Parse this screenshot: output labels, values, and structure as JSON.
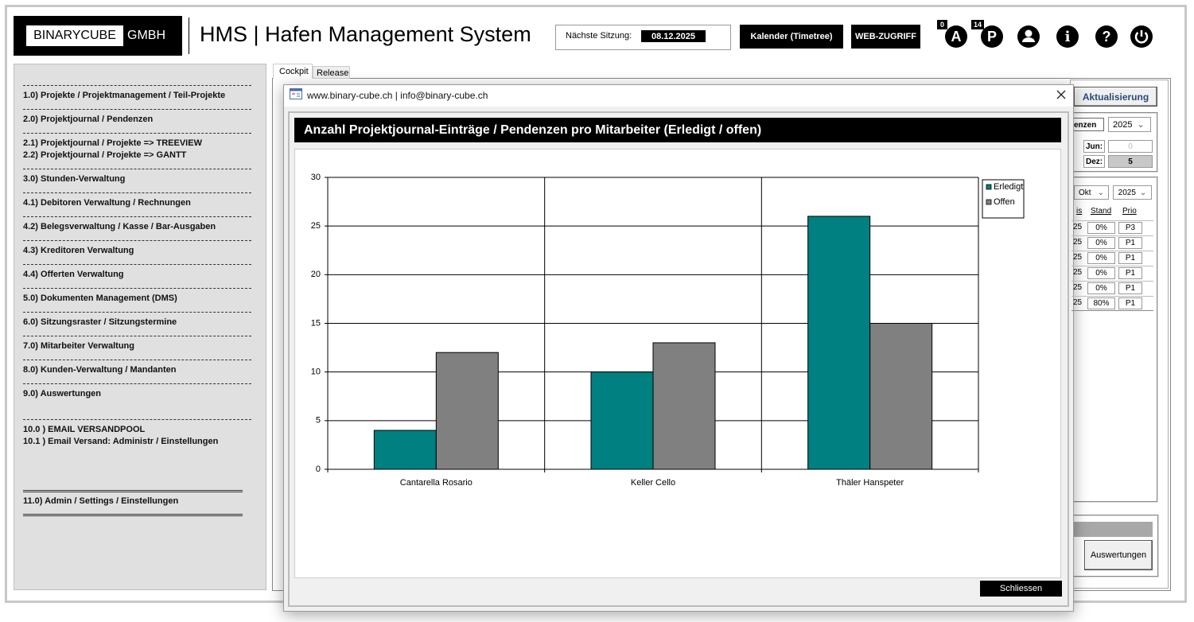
{
  "header": {
    "logo": "BINARYCUBE",
    "logo_suffix": "GMBH",
    "title": "HMS | Hafen Management System",
    "session_label": "Nächste Sitzung:",
    "session_date": "08.12.2025",
    "buttons": [
      "Kalender (Timetree)",
      "WEB-ZUGRIFF"
    ],
    "badges": [
      {
        "count": 0,
        "letter": "A"
      },
      {
        "count": 14,
        "letter": "P"
      }
    ],
    "icons": [
      "i",
      "?"
    ]
  },
  "menu": {
    "items": [
      "1.0) Projekte / Projektmanagement / Teil-Projekte",
      "2.0) Projektjournal / Pendenzen",
      "2.1) Projektjournal / Projekte => TREEVIEW",
      "2.2) Projektjournal / Projekte => GANTT",
      "3.0) Stunden-Verwaltung",
      "4.1) Debitoren Verwaltung / Rechnungen",
      "4.2) Belegsverwaltung / Kasse / Bar-Ausgaben",
      "4.3) Kreditoren Verwaltung",
      "4.4) Offerten Verwaltung",
      "5.0) Dokumenten Management (DMS)",
      "6.0) Sitzungsraster / Sitzungstermine",
      "7.0) Mitarbeiter Verwaltung",
      "8.0) Kunden-Verwaltung / Mandanten",
      "9.0) Auswertungen",
      "10.0 ) EMAIL VERSANDPOOL",
      "10.1 ) Email Versand: Administr / Einstellungen",
      "11.0) Admin / Settings / Einstellungen"
    ]
  },
  "tabs": [
    "Cockpit",
    "Release"
  ],
  "side_panel": {
    "refresh_button": "Aktualisierung",
    "filter_label": "enzen",
    "filter_year": "2025",
    "months": [
      {
        "label": "Jun:",
        "value": 0
      },
      {
        "label": "Dez:",
        "value": 5
      }
    ],
    "list_month": "Okt",
    "list_year": "2025",
    "columns": [
      "is",
      "Stand",
      "Prio"
    ],
    "rows": [
      [
        "25",
        "0%",
        "P3"
      ],
      [
        "25",
        "0%",
        "P1"
      ],
      [
        "25",
        "0%",
        "P1"
      ],
      [
        "25",
        "0%",
        "P1"
      ],
      [
        "25",
        "0%",
        "P1"
      ],
      [
        "25",
        "80%",
        "P1"
      ]
    ],
    "footer_button": "Auswertungen"
  },
  "dialog": {
    "title": "www.binary-cube.ch | info@binary-cube.ch",
    "close_button": "Schliessen"
  },
  "chart_data": {
    "type": "bar",
    "title": "Anzahl Projektjournal-Einträge / Pendenzen pro Mitarbeiter (Erledigt / offen)",
    "categories": [
      "Cantarella Rosario",
      "Keller Cello",
      "Thäler Hanspeter"
    ],
    "series": [
      {
        "name": "Erledigt",
        "color": "#008080",
        "values": [
          4,
          10,
          26
        ]
      },
      {
        "name": "Offen",
        "color": "#808080",
        "values": [
          12,
          13,
          15
        ]
      }
    ],
    "ylim": [
      0,
      30
    ],
    "yticks": [
      0,
      5,
      10,
      15,
      20,
      25,
      30
    ],
    "grid": true,
    "legend": "top-right"
  }
}
